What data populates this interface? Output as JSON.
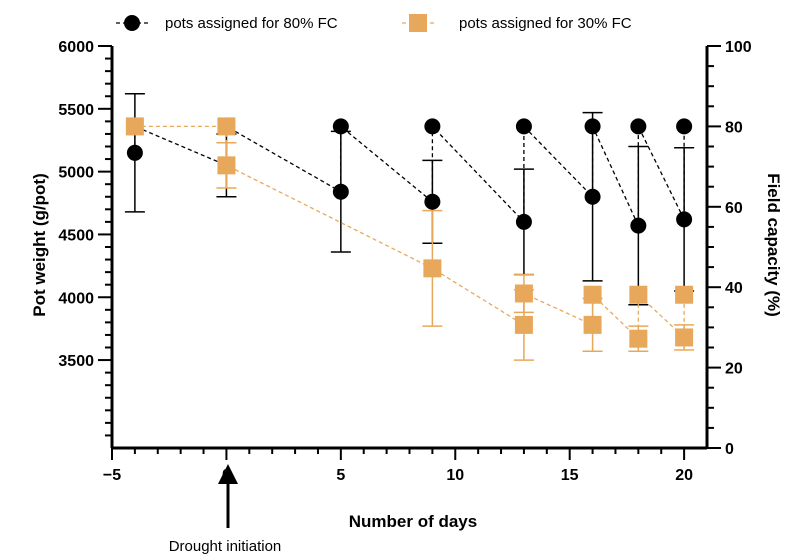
{
  "chart_data": {
    "type": "line",
    "xlabel": "Number of days",
    "ylabel": "Pot weight (g/pot)",
    "ylabel_right": "Field capacity (%)",
    "xlim": [
      -5,
      21
    ],
    "ylim": [
      2800,
      6000
    ],
    "ylim_right": [
      0,
      100
    ],
    "x_ticks": [
      -5,
      0,
      5,
      10,
      15,
      20
    ],
    "y_ticks": [
      3500,
      4000,
      4500,
      5000,
      5500,
      6000
    ],
    "y_ticks_right": [
      0,
      20,
      40,
      60,
      80,
      100
    ],
    "grid": false,
    "legend_position": "top",
    "series": [
      {
        "name": "pots assigned for 80% FC",
        "color": "#000000",
        "marker": "circle",
        "points": [
          {
            "x": -4,
            "y": 5150,
            "err": 470
          },
          {
            "x": -4,
            "y": 5360,
            "err": 0
          },
          {
            "x": 0,
            "y": 5050,
            "err": 250
          },
          {
            "x": 0,
            "y": 5360,
            "err": 0
          },
          {
            "x": 5,
            "y": 4840,
            "err": 480
          },
          {
            "x": 5,
            "y": 5360,
            "err": 0
          },
          {
            "x": 9,
            "y": 4760,
            "err": 330
          },
          {
            "x": 9,
            "y": 5360,
            "err": 0
          },
          {
            "x": 13,
            "y": 4600,
            "err": 420
          },
          {
            "x": 13,
            "y": 5360,
            "err": 0
          },
          {
            "x": 16,
            "y": 4800,
            "err": 670
          },
          {
            "x": 16,
            "y": 5360,
            "err": 0
          },
          {
            "x": 18,
            "y": 4570,
            "err": 630
          },
          {
            "x": 18,
            "y": 5360,
            "err": 0
          },
          {
            "x": 20,
            "y": 4620,
            "err": 570
          },
          {
            "x": 20,
            "y": 5360,
            "err": 0
          }
        ]
      },
      {
        "name": "pots assigned for 30% FC",
        "color": "#E8A85C",
        "marker": "square",
        "points": [
          {
            "x": -4,
            "y": 5360,
            "err": 0
          },
          {
            "x": 0,
            "y": 5360,
            "err": 0
          },
          {
            "x": 0,
            "y": 5050,
            "err": 180
          },
          {
            "x": 9,
            "y": 4230,
            "err": 460
          },
          {
            "x": 13,
            "y": 3780,
            "err": 280
          },
          {
            "x": 13,
            "y": 4030,
            "err": 150
          },
          {
            "x": 16,
            "y": 3780,
            "err": 210
          },
          {
            "x": 16,
            "y": 4020,
            "err": 0
          },
          {
            "x": 18,
            "y": 3670,
            "err": 100
          },
          {
            "x": 18,
            "y": 4020,
            "err": 0
          },
          {
            "x": 20,
            "y": 3680,
            "err": 100
          },
          {
            "x": 20,
            "y": 4020,
            "err": 0
          }
        ]
      }
    ],
    "annotations": [
      {
        "text": "Drought initiation",
        "x": 0
      }
    ]
  }
}
